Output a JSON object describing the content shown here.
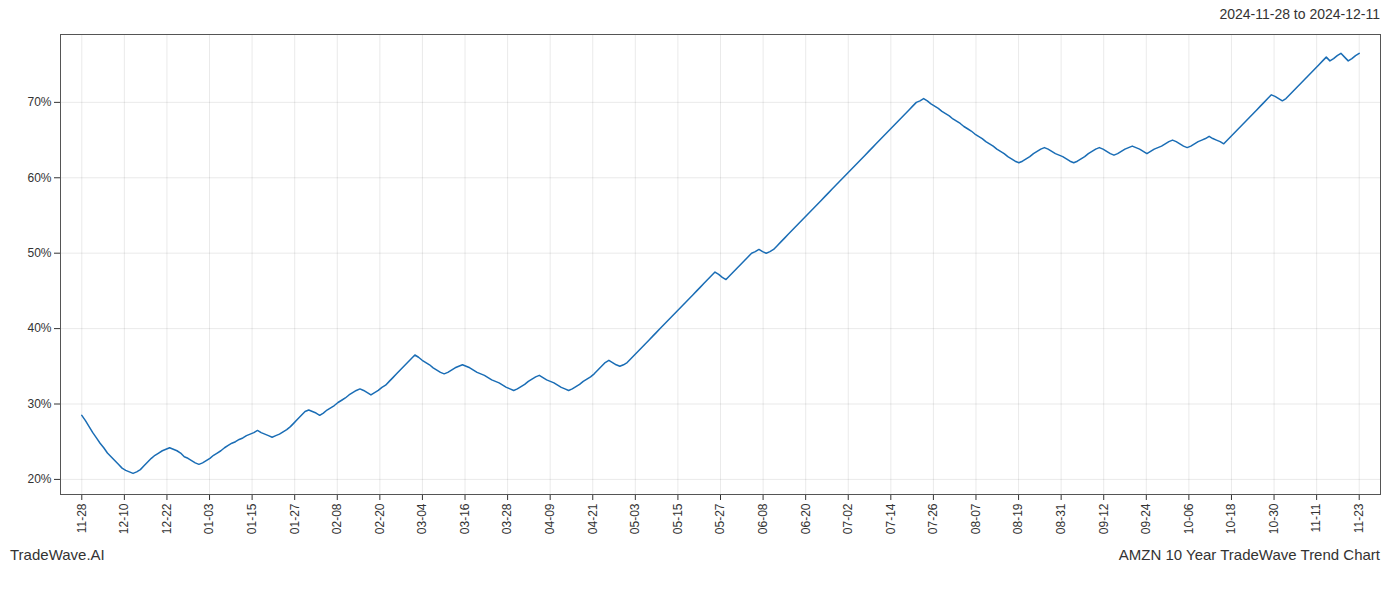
{
  "chart_data": {
    "type": "line",
    "title": "2024-11-28 to 2024-12-11",
    "annotations": [
      "TradeWave.AI",
      "AMZN 10 Year TradeWave Trend Chart"
    ],
    "color": "#1a6db5",
    "grid": true,
    "xlim": [
      -0.5,
      30.5
    ],
    "xticks": [
      {
        "value": 0,
        "label": "11-28"
      },
      {
        "value": 1,
        "label": "12-10"
      },
      {
        "value": 2,
        "label": "12-22"
      },
      {
        "value": 3,
        "label": "01-03"
      },
      {
        "value": 4,
        "label": "01-15"
      },
      {
        "value": 5,
        "label": "01-27"
      },
      {
        "value": 6,
        "label": "02-08"
      },
      {
        "value": 7,
        "label": "02-20"
      },
      {
        "value": 8,
        "label": "03-04"
      },
      {
        "value": 9,
        "label": "03-16"
      },
      {
        "value": 10,
        "label": "03-28"
      },
      {
        "value": 11,
        "label": "04-09"
      },
      {
        "value": 12,
        "label": "04-21"
      },
      {
        "value": 13,
        "label": "05-03"
      },
      {
        "value": 14,
        "label": "05-15"
      },
      {
        "value": 15,
        "label": "05-27"
      },
      {
        "value": 16,
        "label": "06-08"
      },
      {
        "value": 17,
        "label": "06-20"
      },
      {
        "value": 18,
        "label": "07-02"
      },
      {
        "value": 19,
        "label": "07-14"
      },
      {
        "value": 20,
        "label": "07-26"
      },
      {
        "value": 21,
        "label": "08-07"
      },
      {
        "value": 22,
        "label": "08-19"
      },
      {
        "value": 23,
        "label": "08-31"
      },
      {
        "value": 24,
        "label": "09-12"
      },
      {
        "value": 25,
        "label": "09-24"
      },
      {
        "value": 26,
        "label": "10-06"
      },
      {
        "value": 27,
        "label": "10-18"
      },
      {
        "value": 28,
        "label": "10-30"
      },
      {
        "value": 29,
        "label": "11-11"
      },
      {
        "value": 30,
        "label": "11-23"
      }
    ],
    "ylim": [
      18,
      79
    ],
    "yticks": [
      {
        "value": 20,
        "label": "20%"
      },
      {
        "value": 30,
        "label": "30%"
      },
      {
        "value": 40,
        "label": "40%"
      },
      {
        "value": 50,
        "label": "50%"
      },
      {
        "value": 60,
        "label": "60%"
      },
      {
        "value": 70,
        "label": "70%"
      }
    ],
    "values": [
      28.5,
      27.8,
      27.0,
      26.2,
      25.5,
      24.8,
      24.2,
      23.5,
      23.0,
      22.5,
      22.0,
      21.5,
      21.2,
      21.0,
      20.8,
      21.0,
      21.3,
      21.8,
      22.3,
      22.8,
      23.2,
      23.5,
      23.8,
      24.0,
      24.2,
      24.0,
      23.8,
      23.5,
      23.0,
      22.8,
      22.5,
      22.2,
      22.0,
      22.2,
      22.5,
      22.8,
      23.2,
      23.5,
      23.8,
      24.2,
      24.5,
      24.8,
      25.0,
      25.3,
      25.5,
      25.8,
      26.0,
      26.2,
      26.5,
      26.2,
      26.0,
      25.8,
      25.6,
      25.8,
      26.0,
      26.3,
      26.6,
      27.0,
      27.5,
      28.0,
      28.5,
      29.0,
      29.2,
      29.0,
      28.8,
      28.5,
      28.8,
      29.2,
      29.5,
      29.8,
      30.2,
      30.5,
      30.8,
      31.2,
      31.5,
      31.8,
      32.0,
      31.8,
      31.5,
      31.2,
      31.5,
      31.8,
      32.2,
      32.5,
      33.0,
      33.5,
      34.0,
      34.5,
      35.0,
      35.5,
      36.0,
      36.5,
      36.2,
      35.8,
      35.5,
      35.2,
      34.8,
      34.5,
      34.2,
      34.0,
      34.2,
      34.5,
      34.8,
      35.0,
      35.2,
      35.0,
      34.8,
      34.5,
      34.2,
      34.0,
      33.8,
      33.5,
      33.2,
      33.0,
      32.8,
      32.5,
      32.2,
      32.0,
      31.8,
      32.0,
      32.3,
      32.6,
      33.0,
      33.3,
      33.6,
      33.8,
      33.5,
      33.2,
      33.0,
      32.8,
      32.5,
      32.2,
      32.0,
      31.8,
      32.0,
      32.3,
      32.6,
      33.0,
      33.3,
      33.6,
      34.0,
      34.5,
      35.0,
      35.5,
      35.8,
      35.5,
      35.2,
      35.0,
      35.2,
      35.5,
      36.0,
      36.5,
      37.0,
      37.5,
      38.0,
      38.5,
      39.0,
      39.5,
      40.0,
      40.5,
      41.0,
      41.5,
      42.0,
      42.5,
      43.0,
      43.5,
      44.0,
      44.5,
      45.0,
      45.5,
      46.0,
      46.5,
      47.0,
      47.5,
      47.2,
      46.8,
      46.5,
      47.0,
      47.5,
      48.0,
      48.5,
      49.0,
      49.5,
      50.0,
      50.2,
      50.5,
      50.2,
      50.0,
      50.2,
      50.5,
      51.0,
      51.5,
      52.0,
      52.5,
      53.0,
      53.5,
      54.0,
      54.5,
      55.0,
      55.5,
      56.0,
      56.5,
      57.0,
      57.5,
      58.0,
      58.5,
      59.0,
      59.5,
      60.0,
      60.5,
      61.0,
      61.5,
      62.0,
      62.5,
      63.0,
      63.5,
      64.0,
      64.5,
      65.0,
      65.5,
      66.0,
      66.5,
      67.0,
      67.5,
      68.0,
      68.5,
      69.0,
      69.5,
      70.0,
      70.2,
      70.5,
      70.2,
      69.8,
      69.5,
      69.2,
      68.8,
      68.5,
      68.2,
      67.8,
      67.5,
      67.2,
      66.8,
      66.5,
      66.2,
      65.8,
      65.5,
      65.2,
      64.8,
      64.5,
      64.2,
      63.8,
      63.5,
      63.2,
      62.8,
      62.5,
      62.2,
      62.0,
      62.2,
      62.5,
      62.8,
      63.2,
      63.5,
      63.8,
      64.0,
      63.8,
      63.5,
      63.2,
      63.0,
      62.8,
      62.5,
      62.2,
      62.0,
      62.2,
      62.5,
      62.8,
      63.2,
      63.5,
      63.8,
      64.0,
      63.8,
      63.5,
      63.2,
      63.0,
      63.2,
      63.5,
      63.8,
      64.0,
      64.2,
      64.0,
      63.8,
      63.5,
      63.2,
      63.5,
      63.8,
      64.0,
      64.2,
      64.5,
      64.8,
      65.0,
      64.8,
      64.5,
      64.2,
      64.0,
      64.2,
      64.5,
      64.8,
      65.0,
      65.2,
      65.5,
      65.2,
      65.0,
      64.8,
      64.5,
      65.0,
      65.5,
      66.0,
      66.5,
      67.0,
      67.5,
      68.0,
      68.5,
      69.0,
      69.5,
      70.0,
      70.5,
      71.0,
      70.8,
      70.5,
      70.2,
      70.5,
      71.0,
      71.5,
      72.0,
      72.5,
      73.0,
      73.5,
      74.0,
      74.5,
      75.0,
      75.5,
      76.0,
      75.5,
      75.8,
      76.2,
      76.5,
      76.0,
      75.5,
      75.8,
      76.2,
      76.5
    ]
  }
}
